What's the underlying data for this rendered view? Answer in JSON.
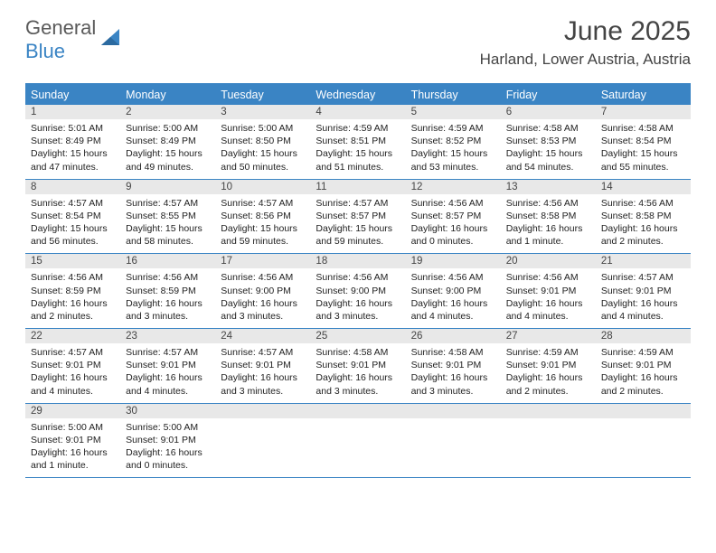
{
  "brand": {
    "word1": "General",
    "word2": "Blue"
  },
  "title": "June 2025",
  "location": "Harland, Lower Austria, Austria",
  "colors": {
    "accent": "#3a84c4",
    "header_text": "#444444",
    "daynum_bg": "#e8e8e8",
    "body_text": "#222222",
    "background": "#ffffff"
  },
  "days_of_week": [
    "Sunday",
    "Monday",
    "Tuesday",
    "Wednesday",
    "Thursday",
    "Friday",
    "Saturday"
  ],
  "weeks": [
    [
      {
        "n": "1",
        "sunrise": "Sunrise: 5:01 AM",
        "sunset": "Sunset: 8:49 PM",
        "day1": "Daylight: 15 hours",
        "day2": "and 47 minutes."
      },
      {
        "n": "2",
        "sunrise": "Sunrise: 5:00 AM",
        "sunset": "Sunset: 8:49 PM",
        "day1": "Daylight: 15 hours",
        "day2": "and 49 minutes."
      },
      {
        "n": "3",
        "sunrise": "Sunrise: 5:00 AM",
        "sunset": "Sunset: 8:50 PM",
        "day1": "Daylight: 15 hours",
        "day2": "and 50 minutes."
      },
      {
        "n": "4",
        "sunrise": "Sunrise: 4:59 AM",
        "sunset": "Sunset: 8:51 PM",
        "day1": "Daylight: 15 hours",
        "day2": "and 51 minutes."
      },
      {
        "n": "5",
        "sunrise": "Sunrise: 4:59 AM",
        "sunset": "Sunset: 8:52 PM",
        "day1": "Daylight: 15 hours",
        "day2": "and 53 minutes."
      },
      {
        "n": "6",
        "sunrise": "Sunrise: 4:58 AM",
        "sunset": "Sunset: 8:53 PM",
        "day1": "Daylight: 15 hours",
        "day2": "and 54 minutes."
      },
      {
        "n": "7",
        "sunrise": "Sunrise: 4:58 AM",
        "sunset": "Sunset: 8:54 PM",
        "day1": "Daylight: 15 hours",
        "day2": "and 55 minutes."
      }
    ],
    [
      {
        "n": "8",
        "sunrise": "Sunrise: 4:57 AM",
        "sunset": "Sunset: 8:54 PM",
        "day1": "Daylight: 15 hours",
        "day2": "and 56 minutes."
      },
      {
        "n": "9",
        "sunrise": "Sunrise: 4:57 AM",
        "sunset": "Sunset: 8:55 PM",
        "day1": "Daylight: 15 hours",
        "day2": "and 58 minutes."
      },
      {
        "n": "10",
        "sunrise": "Sunrise: 4:57 AM",
        "sunset": "Sunset: 8:56 PM",
        "day1": "Daylight: 15 hours",
        "day2": "and 59 minutes."
      },
      {
        "n": "11",
        "sunrise": "Sunrise: 4:57 AM",
        "sunset": "Sunset: 8:57 PM",
        "day1": "Daylight: 15 hours",
        "day2": "and 59 minutes."
      },
      {
        "n": "12",
        "sunrise": "Sunrise: 4:56 AM",
        "sunset": "Sunset: 8:57 PM",
        "day1": "Daylight: 16 hours",
        "day2": "and 0 minutes."
      },
      {
        "n": "13",
        "sunrise": "Sunrise: 4:56 AM",
        "sunset": "Sunset: 8:58 PM",
        "day1": "Daylight: 16 hours",
        "day2": "and 1 minute."
      },
      {
        "n": "14",
        "sunrise": "Sunrise: 4:56 AM",
        "sunset": "Sunset: 8:58 PM",
        "day1": "Daylight: 16 hours",
        "day2": "and 2 minutes."
      }
    ],
    [
      {
        "n": "15",
        "sunrise": "Sunrise: 4:56 AM",
        "sunset": "Sunset: 8:59 PM",
        "day1": "Daylight: 16 hours",
        "day2": "and 2 minutes."
      },
      {
        "n": "16",
        "sunrise": "Sunrise: 4:56 AM",
        "sunset": "Sunset: 8:59 PM",
        "day1": "Daylight: 16 hours",
        "day2": "and 3 minutes."
      },
      {
        "n": "17",
        "sunrise": "Sunrise: 4:56 AM",
        "sunset": "Sunset: 9:00 PM",
        "day1": "Daylight: 16 hours",
        "day2": "and 3 minutes."
      },
      {
        "n": "18",
        "sunrise": "Sunrise: 4:56 AM",
        "sunset": "Sunset: 9:00 PM",
        "day1": "Daylight: 16 hours",
        "day2": "and 3 minutes."
      },
      {
        "n": "19",
        "sunrise": "Sunrise: 4:56 AM",
        "sunset": "Sunset: 9:00 PM",
        "day1": "Daylight: 16 hours",
        "day2": "and 4 minutes."
      },
      {
        "n": "20",
        "sunrise": "Sunrise: 4:56 AM",
        "sunset": "Sunset: 9:01 PM",
        "day1": "Daylight: 16 hours",
        "day2": "and 4 minutes."
      },
      {
        "n": "21",
        "sunrise": "Sunrise: 4:57 AM",
        "sunset": "Sunset: 9:01 PM",
        "day1": "Daylight: 16 hours",
        "day2": "and 4 minutes."
      }
    ],
    [
      {
        "n": "22",
        "sunrise": "Sunrise: 4:57 AM",
        "sunset": "Sunset: 9:01 PM",
        "day1": "Daylight: 16 hours",
        "day2": "and 4 minutes."
      },
      {
        "n": "23",
        "sunrise": "Sunrise: 4:57 AM",
        "sunset": "Sunset: 9:01 PM",
        "day1": "Daylight: 16 hours",
        "day2": "and 4 minutes."
      },
      {
        "n": "24",
        "sunrise": "Sunrise: 4:57 AM",
        "sunset": "Sunset: 9:01 PM",
        "day1": "Daylight: 16 hours",
        "day2": "and 3 minutes."
      },
      {
        "n": "25",
        "sunrise": "Sunrise: 4:58 AM",
        "sunset": "Sunset: 9:01 PM",
        "day1": "Daylight: 16 hours",
        "day2": "and 3 minutes."
      },
      {
        "n": "26",
        "sunrise": "Sunrise: 4:58 AM",
        "sunset": "Sunset: 9:01 PM",
        "day1": "Daylight: 16 hours",
        "day2": "and 3 minutes."
      },
      {
        "n": "27",
        "sunrise": "Sunrise: 4:59 AM",
        "sunset": "Sunset: 9:01 PM",
        "day1": "Daylight: 16 hours",
        "day2": "and 2 minutes."
      },
      {
        "n": "28",
        "sunrise": "Sunrise: 4:59 AM",
        "sunset": "Sunset: 9:01 PM",
        "day1": "Daylight: 16 hours",
        "day2": "and 2 minutes."
      }
    ],
    [
      {
        "n": "29",
        "sunrise": "Sunrise: 5:00 AM",
        "sunset": "Sunset: 9:01 PM",
        "day1": "Daylight: 16 hours",
        "day2": "and 1 minute."
      },
      {
        "n": "30",
        "sunrise": "Sunrise: 5:00 AM",
        "sunset": "Sunset: 9:01 PM",
        "day1": "Daylight: 16 hours",
        "day2": "and 0 minutes."
      },
      null,
      null,
      null,
      null,
      null
    ]
  ]
}
